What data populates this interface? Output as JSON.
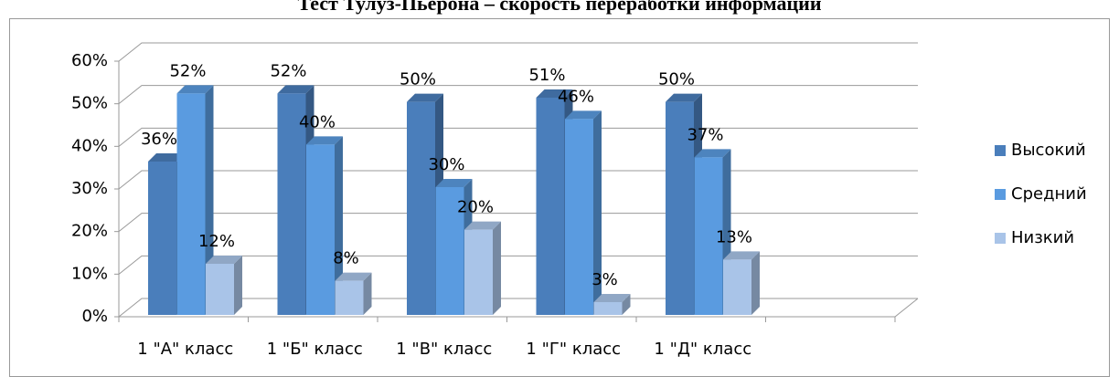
{
  "chart_data": {
    "type": "bar3d",
    "title": "Тест Тулуз-Пьерона – скорость переработки информации",
    "categories": [
      "1 \"А\" класс",
      "1 \"Б\" класс",
      "1 \"В\" класс",
      "1 \"Г\" класс",
      "1 \"Д\" класс"
    ],
    "series": [
      {
        "name": "Высокий",
        "color": "#4a7ebb",
        "values": [
          36,
          52,
          50,
          51,
          50
        ],
        "value_labels": [
          "36%",
          "52%",
          "50%",
          "51%",
          "50%"
        ]
      },
      {
        "name": "Средний",
        "color": "#5a9be0",
        "values": [
          52,
          40,
          30,
          46,
          37
        ],
        "value_labels": [
          "52%",
          "40%",
          "30%",
          "46%",
          "37%"
        ]
      },
      {
        "name": "Низкий",
        "color": "#a9c4e8",
        "values": [
          12,
          8,
          20,
          3,
          13
        ],
        "value_labels": [
          "12%",
          "8%",
          "20%",
          "3%",
          "13%"
        ]
      }
    ],
    "ylim": [
      0,
      60
    ],
    "yticks": [
      {
        "value": 0,
        "label": "0%"
      },
      {
        "value": 10,
        "label": "10%"
      },
      {
        "value": 20,
        "label": "20%"
      },
      {
        "value": 30,
        "label": "30%"
      },
      {
        "value": 40,
        "label": "40%"
      },
      {
        "value": 50,
        "label": "50%"
      },
      {
        "value": 60,
        "label": "60%"
      }
    ],
    "grid": true,
    "legend": "right"
  }
}
